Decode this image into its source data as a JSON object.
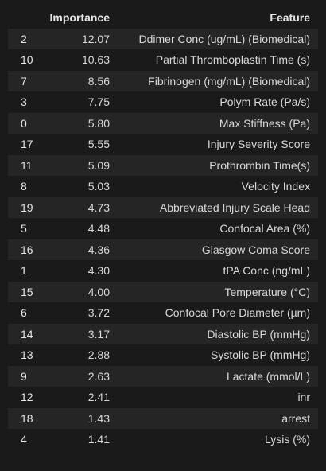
{
  "table": {
    "headers": {
      "index": "",
      "importance": "Importance",
      "feature": "Feature"
    },
    "rows": [
      {
        "index": "2",
        "importance": "12.07",
        "feature": "Ddimer Conc (ug/mL) (Biomedical)"
      },
      {
        "index": "10",
        "importance": "10.63",
        "feature": "Partial Thromboplastin Time (s)"
      },
      {
        "index": "7",
        "importance": "8.56",
        "feature": "Fibrinogen (mg/mL) (Biomedical)"
      },
      {
        "index": "3",
        "importance": "7.75",
        "feature": "Polym Rate (Pa/s)"
      },
      {
        "index": "0",
        "importance": "5.80",
        "feature": "Max Stiffness (Pa)"
      },
      {
        "index": "17",
        "importance": "5.55",
        "feature": "Injury Severity Score"
      },
      {
        "index": "11",
        "importance": "5.09",
        "feature": "Prothrombin Time(s)"
      },
      {
        "index": "8",
        "importance": "5.03",
        "feature": "Velocity Index"
      },
      {
        "index": "19",
        "importance": "4.73",
        "feature": "Abbreviated Injury Scale Head"
      },
      {
        "index": "5",
        "importance": "4.48",
        "feature": "Confocal Area (%)"
      },
      {
        "index": "16",
        "importance": "4.36",
        "feature": "Glasgow Coma Score"
      },
      {
        "index": "1",
        "importance": "4.30",
        "feature": "tPA Conc (ng/mL)"
      },
      {
        "index": "15",
        "importance": "4.00",
        "feature": "Temperature (°C)"
      },
      {
        "index": "6",
        "importance": "3.72",
        "feature": "Confocal Pore Diameter (µm)"
      },
      {
        "index": "14",
        "importance": "3.17",
        "feature": "Diastolic BP (mmHg)"
      },
      {
        "index": "13",
        "importance": "2.88",
        "feature": "Systolic BP (mmHg)"
      },
      {
        "index": "9",
        "importance": "2.63",
        "feature": "Lactate (mmol/L)"
      },
      {
        "index": "12",
        "importance": "2.41",
        "feature": "inr"
      },
      {
        "index": "18",
        "importance": "1.43",
        "feature": "arrest"
      },
      {
        "index": "4",
        "importance": "1.41",
        "feature": "Lysis (%)"
      }
    ]
  },
  "colors": {
    "background": "#1a1a1a",
    "row_alt": "#252525",
    "text": "#d9d9d9"
  }
}
